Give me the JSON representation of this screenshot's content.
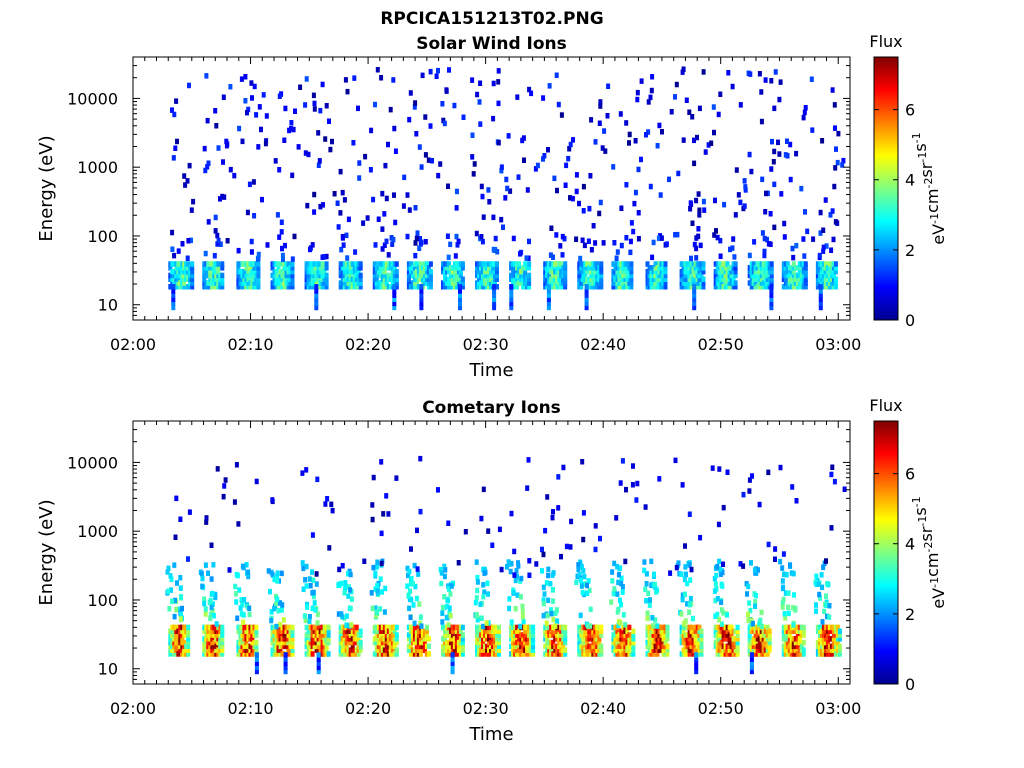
{
  "figure": {
    "title": "RPCICA151213T02.PNG"
  },
  "colormap": [
    "#00008f",
    "#0000ff",
    "#0080ff",
    "#00ffff",
    "#80ff80",
    "#ffff00",
    "#ff8000",
    "#ff0000",
    "#800000"
  ],
  "chart_data": [
    {
      "type": "heatmap",
      "title": "Solar Wind Ions",
      "xlabel": "Time",
      "ylabel": "Energy (eV)",
      "xlim": [
        "02:00",
        "03:01"
      ],
      "ylim": [
        6,
        40000
      ],
      "yscale": "log",
      "xticks": [
        "02:00",
        "02:10",
        "02:20",
        "02:30",
        "02:40",
        "02:50",
        "03:00"
      ],
      "yticks": [
        "10",
        "100",
        "1000",
        "10000"
      ],
      "colorbar": {
        "title": "Flux",
        "units": "eV-1cm-2sr-1s-1",
        "range": [
          0,
          7.5
        ],
        "ticks": [
          "0",
          "2",
          "4",
          "6"
        ]
      },
      "data_start": "02:03",
      "sweep_period_min": 2.9,
      "background_dots_max_flux": 1.5,
      "band": {
        "energy_range_eV": [
          20,
          45
        ],
        "peak_flux": 3.8
      }
    },
    {
      "type": "heatmap",
      "title": "Cometary Ions",
      "xlabel": "Time",
      "ylabel": "Energy (eV)",
      "xlim": [
        "02:00",
        "03:01"
      ],
      "ylim": [
        6,
        40000
      ],
      "yscale": "log",
      "xticks": [
        "02:00",
        "02:10",
        "02:20",
        "02:30",
        "02:40",
        "02:50",
        "03:00"
      ],
      "yticks": [
        "10",
        "100",
        "1000",
        "10000"
      ],
      "colorbar": {
        "title": "Flux",
        "units": "eV-1cm-2sr-1s-1",
        "range": [
          0,
          7.5
        ],
        "ticks": [
          "0",
          "2",
          "4",
          "6"
        ]
      },
      "data_start": "02:03",
      "sweep_period_min": 2.9,
      "background_dots_max_flux": 1.2,
      "band": {
        "energy_range_eV": [
          18,
          45
        ],
        "peak_flux": 7.2
      },
      "plume": {
        "energy_range_eV": [
          45,
          400
        ],
        "flux_range": [
          2,
          4.5
        ]
      }
    }
  ]
}
